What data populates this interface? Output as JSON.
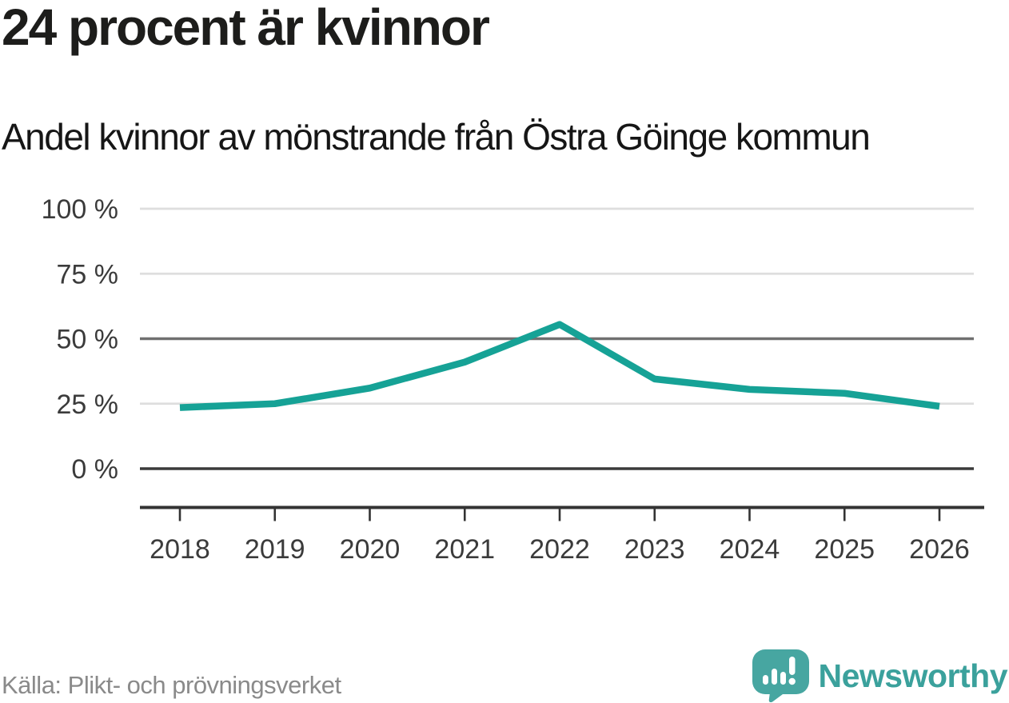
{
  "title": "24 procent är kvinnor",
  "subtitle": "Andel kvinnor av mönstrande från Östra Göinge kommun",
  "footer": {
    "source_label": "Källa: Plikt- och prövningsverket",
    "brand_name": "Newsworthy"
  },
  "colors": {
    "line": "#16a296",
    "grid_light": "#dedede",
    "grid_mid": "#707070",
    "grid_zero": "#3a3a3a",
    "axis": "#333333",
    "axis_label": "#3b3b3b",
    "title_text": "#1d1d1b",
    "source_text": "#8a8a8a",
    "brand_teal": "#3ba19c",
    "brand_icon_teal": "#47a6a1"
  },
  "chart_data": {
    "type": "line",
    "title": "24 procent är kvinnor",
    "subtitle": "Andel kvinnor av mönstrande från Östra Göinge kommun",
    "x": [
      2018,
      2019,
      2020,
      2021,
      2022,
      2023,
      2024,
      2025,
      2026
    ],
    "series": [
      {
        "name": "Andel kvinnor av mönstrande",
        "values": [
          23.5,
          25,
          31,
          41,
          55.5,
          34.5,
          30.5,
          29,
          24
        ],
        "color": "#16a296"
      }
    ],
    "unit": "%",
    "xlabel": "",
    "ylabel": "",
    "ylim": [
      0,
      100
    ],
    "yticks": [
      0,
      25,
      50,
      75,
      100
    ],
    "ytick_labels": [
      "0 %",
      "25 %",
      "50 %",
      "75 %",
      "100 %"
    ],
    "grid": "horizontal",
    "emphasized_gridline": 50,
    "baseline_gridline": 0,
    "legend": "none",
    "source": "Källa: Plikt- och prövningsverket"
  }
}
